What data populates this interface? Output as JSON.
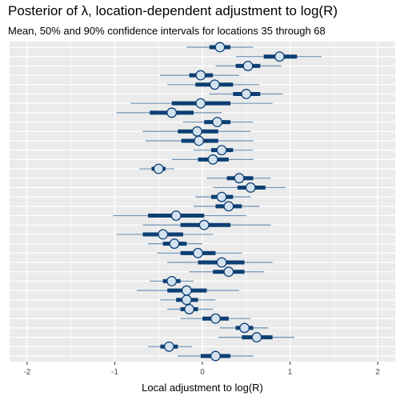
{
  "chart_data": {
    "type": "interval",
    "title": "Posterior of λ, location-dependent adjustment to log(R)",
    "subtitle": "Mean, 50% and 90% confidence intervals for locations 35 through 68",
    "xlabel": "Local adjustment to log(R)",
    "ylabel": "",
    "xlim": [
      -2.2,
      2.2
    ],
    "x_ticks": [
      -2,
      -1,
      0,
      1,
      2
    ],
    "grid": true,
    "colors": {
      "panel": "#ebebeb",
      "grid": "#ffffff",
      "outer_interval": "#6a94b8",
      "inner_interval": "#0d3f73",
      "point_fill": "#d4e2f0",
      "point_stroke": "#0d3f73"
    },
    "series": [
      {
        "mean": 0.2,
        "q25": 0.08,
        "q75": 0.32,
        "q05": -0.18,
        "q95": 0.58
      },
      {
        "mean": 0.88,
        "q25": 0.7,
        "q75": 1.08,
        "q05": 0.38,
        "q95": 1.36
      },
      {
        "mean": 0.52,
        "q25": 0.38,
        "q75": 0.66,
        "q05": 0.15,
        "q95": 0.9
      },
      {
        "mean": -0.02,
        "q25": -0.15,
        "q75": 0.12,
        "q05": -0.48,
        "q95": 0.42
      },
      {
        "mean": 0.14,
        "q25": -0.08,
        "q75": 0.35,
        "q05": -0.4,
        "q95": 0.65
      },
      {
        "mean": 0.5,
        "q25": 0.35,
        "q75": 0.66,
        "q05": 0.08,
        "q95": 0.92
      },
      {
        "mean": -0.02,
        "q25": -0.35,
        "q75": 0.32,
        "q05": -0.82,
        "q95": 0.8
      },
      {
        "mean": -0.35,
        "q25": -0.6,
        "q75": -0.1,
        "q05": -0.98,
        "q95": 0.22
      },
      {
        "mean": 0.17,
        "q25": 0.02,
        "q75": 0.32,
        "q05": -0.22,
        "q95": 0.58
      },
      {
        "mean": -0.06,
        "q25": -0.28,
        "q75": 0.18,
        "q05": -0.68,
        "q95": 0.55
      },
      {
        "mean": -0.04,
        "q25": -0.24,
        "q75": 0.18,
        "q05": -0.65,
        "q95": 0.58
      },
      {
        "mean": 0.22,
        "q25": 0.1,
        "q75": 0.35,
        "q05": -0.1,
        "q95": 0.58
      },
      {
        "mean": 0.12,
        "q25": -0.05,
        "q75": 0.3,
        "q05": -0.35,
        "q95": 0.58
      },
      {
        "mean": -0.5,
        "q25": -0.58,
        "q75": -0.42,
        "q05": -0.72,
        "q95": -0.32
      },
      {
        "mean": 0.42,
        "q25": 0.28,
        "q75": 0.58,
        "q05": 0.05,
        "q95": 0.78
      },
      {
        "mean": 0.55,
        "q25": 0.4,
        "q75": 0.72,
        "q05": 0.12,
        "q95": 0.95
      },
      {
        "mean": 0.22,
        "q25": 0.1,
        "q75": 0.35,
        "q05": -0.08,
        "q95": 0.55
      },
      {
        "mean": 0.3,
        "q25": 0.15,
        "q75": 0.45,
        "q05": -0.1,
        "q95": 0.65
      },
      {
        "mean": -0.3,
        "q25": -0.62,
        "q75": 0.02,
        "q05": -1.02,
        "q95": 0.5
      },
      {
        "mean": 0.02,
        "q25": -0.25,
        "q75": 0.32,
        "q05": -0.68,
        "q95": 0.78
      },
      {
        "mean": -0.45,
        "q25": -0.68,
        "q75": -0.22,
        "q05": -0.98,
        "q95": 0.12
      },
      {
        "mean": -0.32,
        "q25": -0.45,
        "q75": -0.18,
        "q05": -0.62,
        "q95": 0.0
      },
      {
        "mean": -0.05,
        "q25": -0.25,
        "q75": 0.15,
        "q05": -0.52,
        "q95": 0.45
      },
      {
        "mean": 0.22,
        "q25": -0.05,
        "q75": 0.48,
        "q05": -0.4,
        "q95": 0.8
      },
      {
        "mean": 0.3,
        "q25": 0.12,
        "q75": 0.48,
        "q05": -0.15,
        "q95": 0.7
      },
      {
        "mean": -0.35,
        "q25": -0.45,
        "q75": -0.25,
        "q05": -0.6,
        "q95": -0.1
      },
      {
        "mean": -0.18,
        "q25": -0.4,
        "q75": 0.05,
        "q05": -0.75,
        "q95": 0.42
      },
      {
        "mean": -0.18,
        "q25": -0.3,
        "q75": -0.05,
        "q05": -0.48,
        "q95": 0.15
      },
      {
        "mean": -0.15,
        "q25": -0.25,
        "q75": -0.05,
        "q05": -0.4,
        "q95": 0.12
      },
      {
        "mean": 0.15,
        "q25": 0.0,
        "q75": 0.3,
        "q05": -0.25,
        "q95": 0.55
      },
      {
        "mean": 0.48,
        "q25": 0.38,
        "q75": 0.58,
        "q05": 0.2,
        "q95": 0.75
      },
      {
        "mean": 0.62,
        "q25": 0.45,
        "q75": 0.8,
        "q05": 0.18,
        "q95": 1.05
      },
      {
        "mean": -0.38,
        "q25": -0.48,
        "q75": -0.28,
        "q05": -0.62,
        "q95": -0.12
      },
      {
        "mean": 0.15,
        "q25": -0.02,
        "q75": 0.32,
        "q05": -0.28,
        "q95": 0.58
      }
    ]
  }
}
